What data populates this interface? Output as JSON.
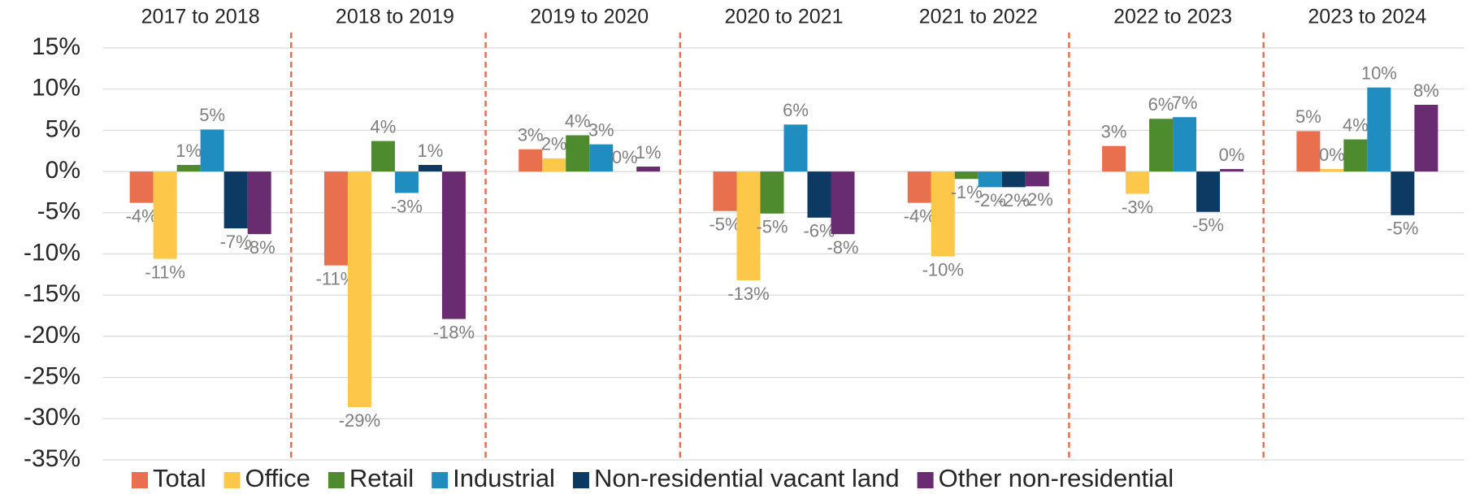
{
  "chart_data": {
    "type": "bar",
    "categories": [
      "2017 to 2018",
      "2018 to 2019",
      "2019 to 2020",
      "2020 to 2021",
      "2021 to 2022",
      "2022 to 2023",
      "2023 to 2024"
    ],
    "series": [
      {
        "name": "Total",
        "color": "#e8704f",
        "values": [
          -3.8,
          -11.4,
          2.7,
          -4.8,
          -3.8,
          3.1,
          4.9
        ],
        "value_labels": [
          "-4%",
          "-11%",
          "3%",
          "-5%",
          "-4%",
          "3%",
          "5%"
        ]
      },
      {
        "name": "Office",
        "color": "#fdc84a",
        "values": [
          -10.6,
          -28.6,
          1.6,
          -13.2,
          -10.3,
          -2.7,
          0.3
        ],
        "value_labels": [
          "-11%",
          "-29%",
          "2%",
          "-13%",
          "-10%",
          "-3%",
          "0%"
        ]
      },
      {
        "name": "Retail",
        "color": "#4e8a2e",
        "values": [
          0.8,
          3.7,
          4.4,
          -5.1,
          -0.9,
          6.4,
          3.9
        ],
        "value_labels": [
          "1%",
          "4%",
          "4%",
          "-5%",
          "-1%",
          "6%",
          "4%"
        ]
      },
      {
        "name": "Industrial",
        "color": "#1f8dbf",
        "values": [
          5.1,
          -2.6,
          3.3,
          5.7,
          -1.9,
          6.6,
          10.2
        ],
        "value_labels": [
          "5%",
          "-3%",
          "3%",
          "6%",
          "-2%",
          "7%",
          "10%"
        ]
      },
      {
        "name": "Non-residential vacant land",
        "color": "#0c3a63",
        "values": [
          -6.9,
          0.8,
          0.0,
          -5.6,
          -1.9,
          -4.9,
          -5.3
        ],
        "value_labels": [
          "-7%",
          "1%",
          "0%",
          "-6%",
          "-2%",
          "-5%",
          "-5%"
        ]
      },
      {
        "name": "Other non-residential",
        "color": "#6a2c70",
        "values": [
          -7.6,
          -17.9,
          0.6,
          -7.6,
          -1.8,
          0.3,
          8.1
        ],
        "value_labels": [
          "-8%",
          "-18%",
          "1%",
          "-8%",
          "-2%",
          "0%",
          "8%"
        ]
      }
    ],
    "ylim": [
      -35,
      15
    ],
    "yticks": [
      {
        "value": -35,
        "label": "-35%"
      },
      {
        "value": -30,
        "label": "-30%"
      },
      {
        "value": -25,
        "label": "-25%"
      },
      {
        "value": -20,
        "label": "-20%"
      },
      {
        "value": -15,
        "label": "-15%"
      },
      {
        "value": -10,
        "label": "-10%"
      },
      {
        "value": -5,
        "label": "-5%"
      },
      {
        "value": 0,
        "label": "0%"
      },
      {
        "value": 5,
        "label": "5%"
      },
      {
        "value": 10,
        "label": "10%"
      },
      {
        "value": 15,
        "label": "15%"
      }
    ],
    "grid": true,
    "legend": "bottom"
  }
}
